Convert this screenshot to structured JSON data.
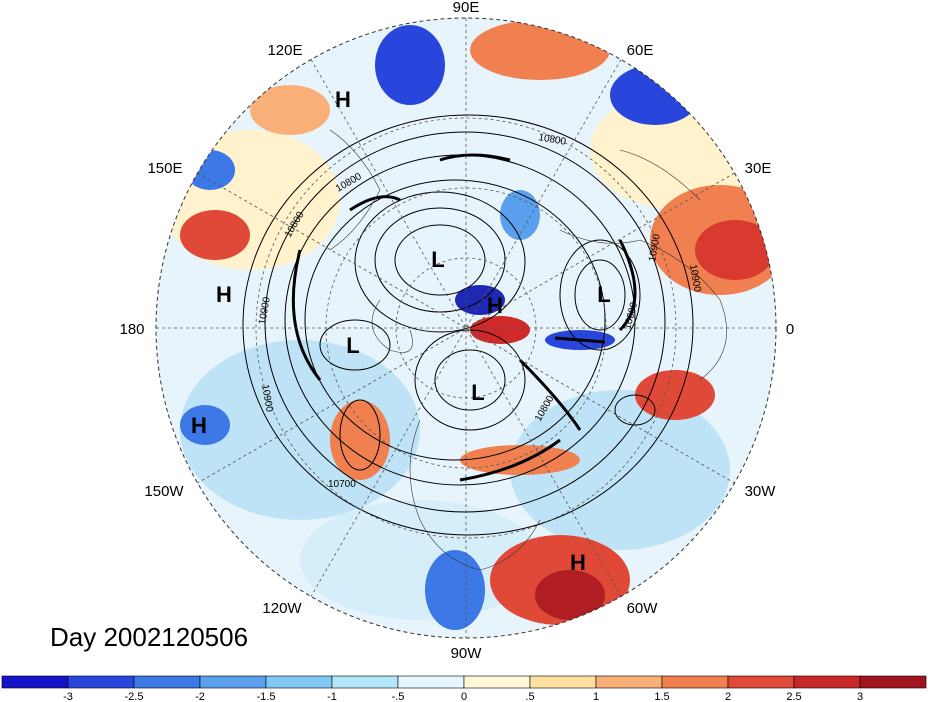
{
  "date_label": "Day 2002120506",
  "longitude_labels": {
    "lon_90e": "90E",
    "lon_120e": "120E",
    "lon_60e": "60E",
    "lon_150e": "150E",
    "lon_30e": "30E",
    "lon_180": "180",
    "lon_0": "0",
    "lon_150w": "150W",
    "lon_30w": "30W",
    "lon_120w": "120W",
    "lon_60w": "60W",
    "lon_90w": "90W"
  },
  "pressure_centers": [
    {
      "label": "H",
      "name": "high-east-asia"
    },
    {
      "label": "H",
      "name": "high-pacific-west"
    },
    {
      "label": "H",
      "name": "high-pacific-south"
    },
    {
      "label": "H",
      "name": "high-arctic"
    },
    {
      "label": "H",
      "name": "high-atlantic-south"
    },
    {
      "label": "L",
      "name": "low-siberia"
    },
    {
      "label": "L",
      "name": "low-europe"
    },
    {
      "label": "L",
      "name": "low-alaska"
    },
    {
      "label": "L",
      "name": "low-canada"
    }
  ],
  "contour_labels": [
    "10800",
    "10800",
    "10900",
    "10900",
    "10900",
    "10600",
    "10800",
    "10700",
    "10900",
    "10800"
  ],
  "colorbar": {
    "ticks": [
      "-3",
      "-2.5",
      "-2",
      "-1.5",
      "-1",
      "-.5",
      "0",
      ".5",
      "1",
      "1.5",
      "2",
      "2.5",
      "3"
    ],
    "colors": [
      "#1414c8",
      "#2846dc",
      "#3c78e6",
      "#5aa0ee",
      "#82c8f5",
      "#b4e6fa",
      "#e6f6fc",
      "#fff8d8",
      "#ffe0a0",
      "#f8b078",
      "#f08050",
      "#e04838",
      "#c82828",
      "#a01420"
    ]
  }
}
